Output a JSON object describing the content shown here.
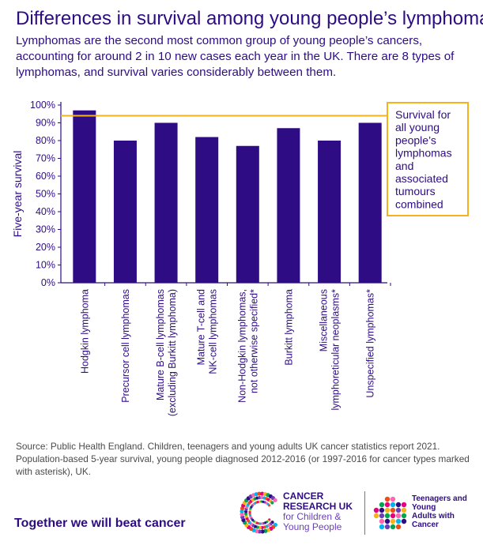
{
  "title": "Differences in survival among young people’s lymphomas",
  "subtitle": "Lymphomas are the second most common group of young people’s cancers, accounting for around 2 in 10 new cases each year in the UK. There are 8 types of lymphomas, and survival varies considerably between them.",
  "source": "Source: Public Health England. Children, teenagers and young adults UK cancer statistics report 2021. Population-based 5-year survival, young people diagnosed 2012-2016 (or 1997-2016 for cancer types marked with asterisk), UK.",
  "tagline": "Together we will beat cancer",
  "logos": {
    "cruk_line1": "CANCER",
    "cruk_line2": "RESEARCH UK",
    "cruk_line3": "for Children &",
    "cruk_line4": "Young People",
    "ty_line1": "Teenagers and",
    "ty_line2": "Young",
    "ty_line3": "Adults with",
    "ty_line4": "Cancer"
  },
  "colors": {
    "bar": "#2e0c84",
    "reference_line": "#f5b21b",
    "text": "#2e0c84"
  },
  "chart_data": {
    "type": "bar",
    "ylabel": "Five-year survival",
    "xlabel": "",
    "ylim": [
      0,
      100
    ],
    "yticks": [
      "0%",
      "10%",
      "20%",
      "30%",
      "40%",
      "50%",
      "60%",
      "70%",
      "80%",
      "90%",
      "100%"
    ],
    "categories": [
      [
        "Hodgkin lymphoma"
      ],
      [
        "Precursor cell lymphomas"
      ],
      [
        "Mature B-cell lymphomas",
        "(excluding Burkitt lymphoma)"
      ],
      [
        "Mature T-cell and",
        "NK-cell lymphomas"
      ],
      [
        "Non-Hodgkin lymphomas,",
        "not otherwise specified*"
      ],
      [
        "Burkitt lymphoma"
      ],
      [
        "Miscellaneous",
        "lymphoreticular neoplasms*"
      ],
      [
        "Unspecified lymphomas*"
      ]
    ],
    "values": [
      97,
      80,
      90,
      82,
      77,
      87,
      80,
      90
    ],
    "reference": {
      "value": 94,
      "label": [
        "Survival for",
        "all young",
        "people’s",
        "lymphomas",
        "and",
        "associated",
        "tumours",
        "combined"
      ]
    },
    "grid": false
  }
}
